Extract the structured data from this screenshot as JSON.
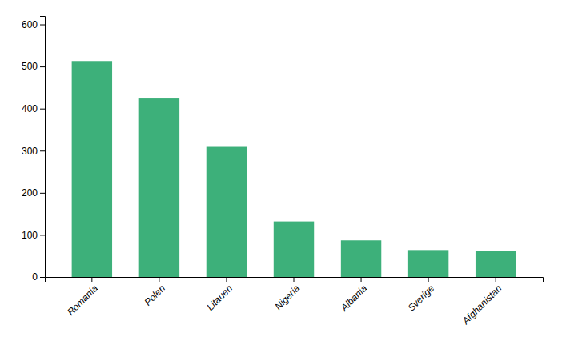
{
  "chart_data": {
    "type": "bar",
    "categories": [
      "Romania",
      "Polen",
      "Litauen",
      "Nigeria",
      "Albania",
      "Sverige",
      "Afghanistan"
    ],
    "values": [
      513,
      424,
      309,
      132,
      87,
      64,
      62
    ],
    "color": "#3db07a",
    "ylim": [
      0,
      620
    ],
    "yticks": [
      0,
      100,
      200,
      300,
      400,
      500,
      600
    ]
  }
}
